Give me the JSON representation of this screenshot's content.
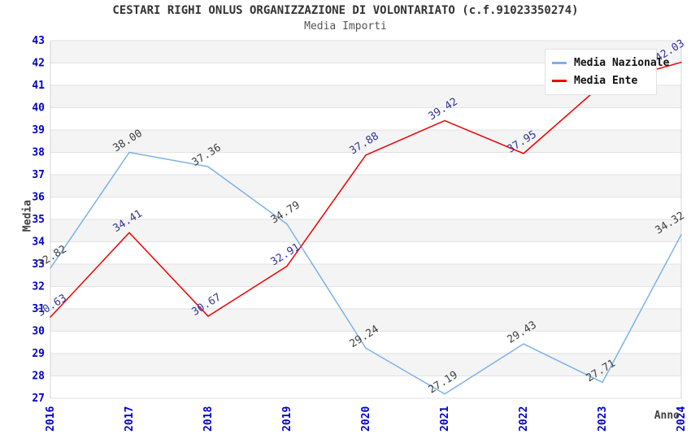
{
  "title": "CESTARI RIGHI ONLUS ORGANIZZAZIONE DI VOLONTARIATO (c.f.91023350274)",
  "subtitle": "Media Importi",
  "legend": {
    "items": [
      {
        "label": "Media Nazionale",
        "color": "#7db1e8"
      },
      {
        "label": "Media Ente",
        "color": "#ee0000"
      }
    ]
  },
  "axes": {
    "y_label": "Media",
    "x_label": "Anno",
    "y_ticks": [
      43,
      42,
      41,
      40,
      39,
      38,
      37,
      36,
      35,
      34,
      33,
      32,
      31,
      30,
      29,
      28,
      27
    ],
    "x_ticks": [
      "2016",
      "2017",
      "2018",
      "2019",
      "2020",
      "2021",
      "2022",
      "2023",
      "2024"
    ],
    "tick_color": "#0000cc",
    "axis_title_color": "#404040"
  },
  "chart_data": {
    "type": "line",
    "title": "Media Importi",
    "xlabel": "Anno",
    "ylabel": "Media",
    "x": [
      2016,
      2017,
      2018,
      2019,
      2020,
      2021,
      2022,
      2023,
      2024
    ],
    "ylim": [
      27,
      43
    ],
    "grid": true,
    "legend_position": "top-right",
    "band_colors": [
      "#f4f4f4",
      "#ffffff"
    ],
    "grid_color": "#e2e2e2",
    "border_color": "#d4d4d4",
    "series": [
      {
        "name": "Media Nazionale",
        "color": "#7db1e8",
        "label_color": "#404040",
        "values": [
          32.82,
          38.0,
          37.36,
          34.79,
          29.24,
          27.19,
          29.43,
          27.71,
          34.32
        ],
        "labels": [
          "32.82",
          "38.00",
          "37.36",
          "34.79",
          "29.24",
          "27.19",
          "29.43",
          "27.71",
          "34.32"
        ]
      },
      {
        "name": "Media Ente",
        "color": "#ee0000",
        "label_color": "#333399",
        "values": [
          30.63,
          34.41,
          30.67,
          32.91,
          37.88,
          39.42,
          37.95,
          41.05,
          42.03
        ],
        "labels": [
          "30.63",
          "34.41",
          "30.67",
          "32.91",
          "37.88",
          "39.42",
          "37.95",
          null,
          "42.03"
        ]
      }
    ]
  }
}
